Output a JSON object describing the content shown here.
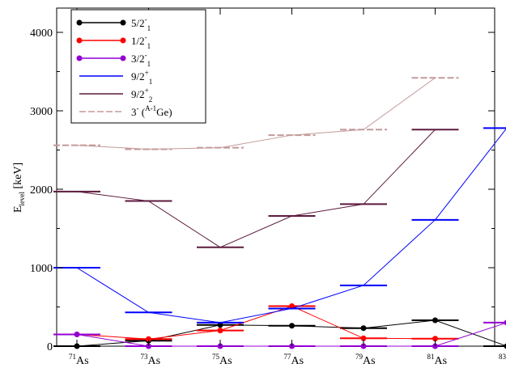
{
  "chart_data": {
    "type": "line",
    "ylabel": "E",
    "ylabel_sub": "level",
    "ylabel_unit": " [keV]",
    "ylim": [
      0,
      4000
    ],
    "yticks": [
      "0",
      "1000",
      "2000",
      "3000",
      "4000"
    ],
    "ytick_values": [
      0,
      1000,
      2000,
      3000,
      4000
    ],
    "categories": [
      {
        "mass": "71",
        "element": "As"
      },
      {
        "mass": "73",
        "element": "As"
      },
      {
        "mass": "75",
        "element": "As"
      },
      {
        "mass": "77",
        "element": "As"
      },
      {
        "mass": "79",
        "element": "As"
      },
      {
        "mass": "81",
        "element": "As"
      },
      {
        "mass": "83",
        "element": "As"
      }
    ],
    "legend_position": "top-left",
    "series": [
      {
        "key": "s52",
        "label": "5/2",
        "sup": "-",
        "sub": "1",
        "color": "#000000",
        "marker": true,
        "dashed": false,
        "values": [
          0,
          70,
          270,
          260,
          230,
          330,
          0
        ]
      },
      {
        "key": "s12",
        "label": "1/2",
        "sup": "-",
        "sub": "1",
        "color": "#ff0000",
        "marker": true,
        "dashed": false,
        "values": [
          150,
          90,
          200,
          510,
          100,
          95,
          null
        ]
      },
      {
        "key": "s32",
        "label": "3/2",
        "sup": "-",
        "sub": "1",
        "color": "#9400d3",
        "marker": true,
        "dashed": false,
        "values": [
          150,
          0,
          0,
          0,
          0,
          0,
          300
        ]
      },
      {
        "key": "s92a",
        "label": "9/2",
        "sup": "+",
        "sub": "1",
        "color": "#0000ff",
        "marker": false,
        "dashed": false,
        "values": [
          1000,
          430,
          300,
          480,
          775,
          1610,
          2780
        ]
      },
      {
        "key": "s92b",
        "label": "9/2",
        "sup": "+",
        "sub": "2",
        "color": "#5c1a3e",
        "marker": false,
        "dashed": false,
        "values": [
          1970,
          1850,
          1260,
          1660,
          1810,
          2760,
          null
        ]
      },
      {
        "key": "s3ge",
        "label": "3",
        "sup": "-",
        "sub": "",
        "extra": " (",
        "extra_sup": "A-1",
        "extra_end": "Ge)",
        "color": "#c49a9a",
        "marker": false,
        "dashed": true,
        "values": [
          2560,
          2510,
          2530,
          2690,
          2760,
          3420,
          null
        ]
      }
    ]
  }
}
